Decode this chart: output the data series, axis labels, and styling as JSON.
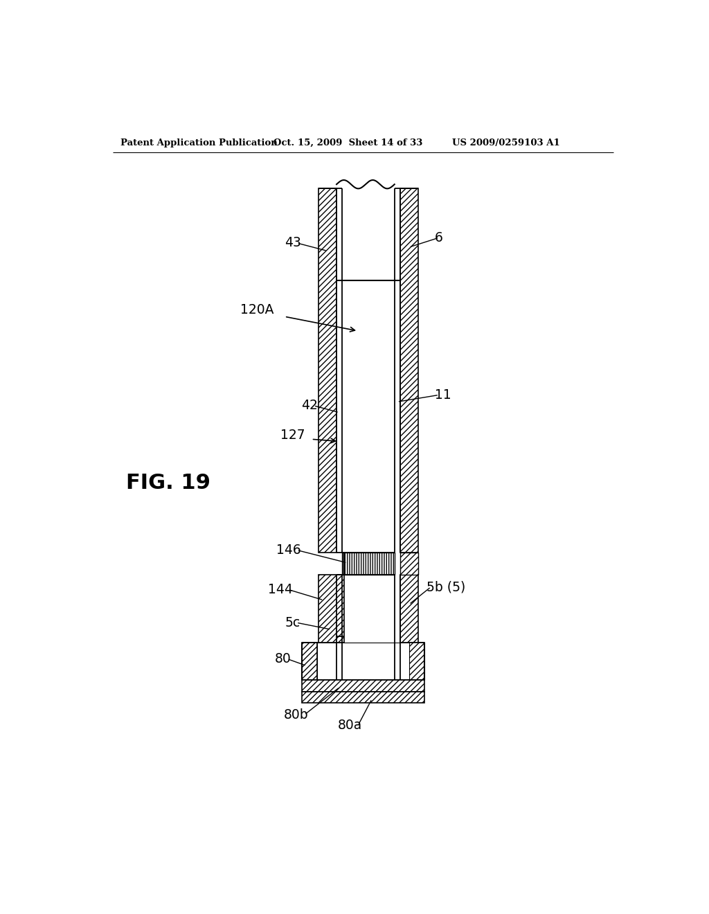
{
  "bg_color": "#ffffff",
  "header_left": "Patent Application Publication",
  "header_mid": "Oct. 15, 2009  Sheet 14 of 33",
  "header_right": "US 2009/0259103 A1",
  "fig_label": "FIG. 19",
  "line_color": "#000000",
  "hatch_color": "#000000"
}
